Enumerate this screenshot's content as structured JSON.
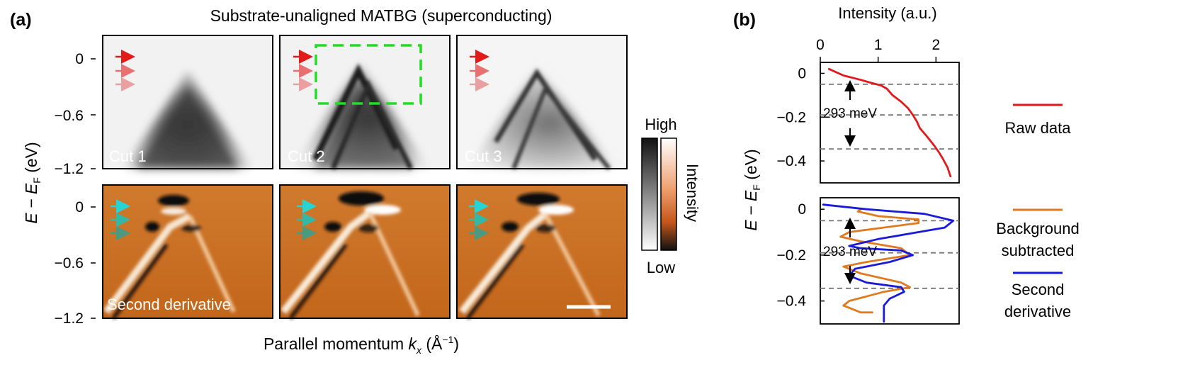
{
  "panel_a": {
    "label": "(a)",
    "title": "Substrate-unaligned MATBG (superconducting)",
    "ylabel_main": "E − E",
    "ylabel_sub": "F",
    "ylabel_unit": " (eV)",
    "xlabel_main": "Parallel momentum ",
    "xlabel_k": "k",
    "xlabel_sub": "x",
    "xlabel_unit": " (Å",
    "xlabel_exp": "−1",
    "xlabel_close": ")",
    "yticks": [
      "0",
      "−0.6",
      "−1.2"
    ],
    "cuts": [
      "Cut 1",
      "Cut 2",
      "Cut 3"
    ],
    "second_derivative_label": "Second derivative",
    "colorbar": {
      "high": "High",
      "low": "Low",
      "title": "Intensity"
    }
  },
  "panel_b": {
    "label": "(b)",
    "xlabel": "Intensity (a.u.)",
    "ylabel_main": "E − E",
    "ylabel_sub": "F",
    "ylabel_unit": " (eV)",
    "annotation": "293 meV",
    "legend": [
      "Raw data",
      "Background subtracted",
      "Second derivative"
    ]
  },
  "colors": {
    "raw": "#e0191b",
    "background_subtracted": "#e07a1f",
    "second_derivative": "#1a1adb",
    "green_box": "#22dd22",
    "arrow_red": [
      "#e11a1a",
      "#e87070",
      "#eaa0a0"
    ],
    "arrow_cyan": [
      "#26d4d4",
      "#34b8a6",
      "#4a9a80"
    ]
  },
  "chart_data": [
    {
      "type": "heatmap",
      "title": "Substrate-unaligned MATBG (superconducting)",
      "xlabel": "Parallel momentum kx (Å−1)",
      "ylabel": "E − EF (eV)",
      "ylim": [
        -1.2,
        0.1
      ],
      "yticks": [
        0,
        -0.6,
        -1.2
      ],
      "panels": [
        "Cut 1",
        "Cut 2",
        "Cut 3",
        "Second derivative"
      ]
    },
    {
      "type": "line",
      "xlabel": "Intensity (a.u.)",
      "ylabel": "E − EF (eV)",
      "xlim": [
        0,
        2.4
      ],
      "xticks": [
        0,
        1,
        2
      ],
      "ylim": [
        -0.5,
        0.05
      ],
      "yticks": [
        0,
        -0.2,
        -0.4
      ],
      "dashed_lines_y": [
        -0.05,
        -0.19,
        -0.345
      ],
      "series": [
        {
          "name": "Raw data",
          "x": [
            0.15,
            0.4,
            0.7,
            0.9,
            1.05,
            1.15,
            1.25,
            1.4,
            1.52,
            1.6,
            1.67,
            1.72,
            1.85,
            1.97,
            2.05,
            2.12,
            2.2,
            2.25
          ],
          "y": [
            0.02,
            -0.01,
            -0.03,
            -0.045,
            -0.055,
            -0.07,
            -0.1,
            -0.13,
            -0.16,
            -0.19,
            -0.22,
            -0.25,
            -0.29,
            -0.33,
            -0.36,
            -0.39,
            -0.43,
            -0.47
          ]
        }
      ]
    },
    {
      "type": "line",
      "xlabel": "Intensity (a.u.)",
      "ylabel": "E − EF (eV)",
      "xlim": [
        0,
        2.4
      ],
      "ylim": [
        -0.5,
        0.05
      ],
      "yticks": [
        0,
        -0.2,
        -0.4
      ],
      "dashed_lines_y": [
        -0.05,
        -0.19,
        -0.345
      ],
      "series": [
        {
          "name": "Background subtracted",
          "x": [
            0.7,
            0.65,
            1.0,
            1.7,
            1.7,
            0.5,
            0.35,
            0.7,
            1.4,
            1.55,
            0.8,
            0.4,
            0.7,
            1.4,
            1.55,
            1.1,
            0.8,
            0.5,
            0.4,
            0.5,
            0.7,
            0.9
          ],
          "y": [
            0.0,
            -0.01,
            -0.03,
            -0.045,
            -0.06,
            -0.1,
            -0.12,
            -0.14,
            -0.17,
            -0.2,
            -0.23,
            -0.25,
            -0.28,
            -0.32,
            -0.34,
            -0.36,
            -0.38,
            -0.4,
            -0.42,
            -0.43,
            -0.45,
            -0.45
          ]
        },
        {
          "name": "Second derivative",
          "x": [
            0.05,
            0.8,
            1.8,
            2.3,
            2.15,
            1.0,
            0.5,
            0.7,
            1.4,
            1.6,
            1.2,
            0.6,
            0.5,
            0.8,
            1.4,
            1.45,
            1.2,
            1.1,
            1.1,
            1.1
          ],
          "y": [
            0.02,
            0.0,
            -0.02,
            -0.05,
            -0.08,
            -0.13,
            -0.16,
            -0.17,
            -0.18,
            -0.2,
            -0.23,
            -0.26,
            -0.29,
            -0.32,
            -0.34,
            -0.36,
            -0.39,
            -0.42,
            -0.46,
            -0.49
          ]
        }
      ]
    }
  ]
}
